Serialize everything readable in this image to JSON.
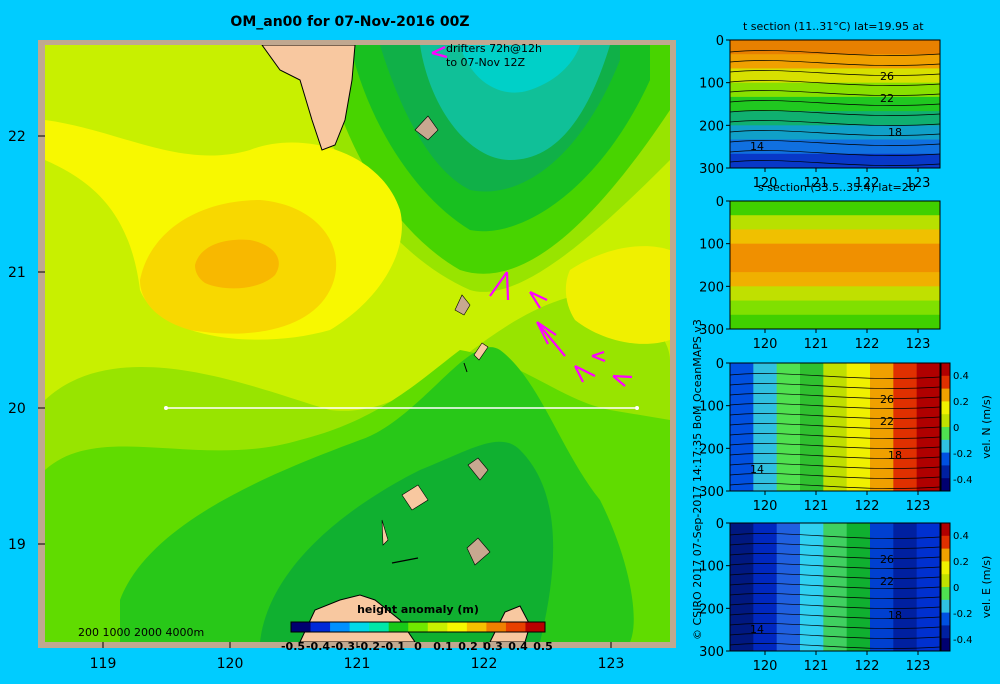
{
  "main_map": {
    "title": "OM_an00 for 07-Nov-2016 00Z",
    "drifters_line1": "drifters 72h@12h",
    "drifters_line2": "to 07-Nov 12Z",
    "lat_ticks": [
      "22",
      "21",
      "20",
      "19"
    ],
    "lon_ticks": [
      "119",
      "120",
      "121",
      "122",
      "123"
    ],
    "depth_legend": "200  1000  2000  4000m",
    "colorbar": {
      "title": "height anomaly  (m)",
      "ticks": [
        "-0.5",
        "-0.4",
        "-0.3",
        "-0.2",
        "-0.1",
        "0",
        "0.1",
        "0.2",
        "0.3",
        "0.4",
        "0.5"
      ],
      "colors": [
        "#000070",
        "#0028d8",
        "#0090ff",
        "#00d8e8",
        "#00e8a8",
        "#18c818",
        "#70e800",
        "#c8f000",
        "#f8f800",
        "#f8c000",
        "#f08000",
        "#e84000",
        "#b80000"
      ]
    },
    "colors": {
      "frame": "#c0a890",
      "land": "#f8c8a0",
      "marker": "#ff00ff",
      "section_line": "#ffffff"
    }
  },
  "panels": [
    {
      "title": "t section (11..31°C) lat=19.95 at",
      "y_ticks": [
        "0",
        "100",
        "200",
        "300"
      ],
      "x_ticks": [
        "120",
        "121",
        "122",
        "123"
      ],
      "contour_labels": [
        "26",
        "22",
        "18",
        "14"
      ]
    },
    {
      "title": "s section (33.5..35.4) lat=20",
      "y_ticks": [
        "0",
        "100",
        "200",
        "300"
      ],
      "x_ticks": [
        "120",
        "121",
        "122",
        "123"
      ],
      "contour_labels": []
    },
    {
      "title": "",
      "y_ticks": [
        "0",
        "100",
        "200",
        "300"
      ],
      "x_ticks": [
        "120",
        "121",
        "122",
        "123"
      ],
      "contour_labels": [
        "26",
        "22",
        "18",
        "14"
      ],
      "colorbar_label": "vel. N  (m/s)",
      "colorbar_ticks": [
        "0.4",
        "0.2",
        "0",
        "-0.2",
        "-0.4"
      ]
    },
    {
      "title": "",
      "y_ticks": [
        "0",
        "100",
        "200",
        "300"
      ],
      "x_ticks": [
        "120",
        "121",
        "122",
        "123"
      ],
      "contour_labels": [
        "26",
        "22",
        "18",
        "14"
      ],
      "colorbar_label": "vel. E  (m/s)",
      "colorbar_ticks": [
        "0.4",
        "0.2",
        "0",
        "-0.2",
        "-0.4"
      ]
    }
  ],
  "credit": "© CSIRO 2017   07-Sep-2017 14:17:35 BoM OceanMAPS v3"
}
